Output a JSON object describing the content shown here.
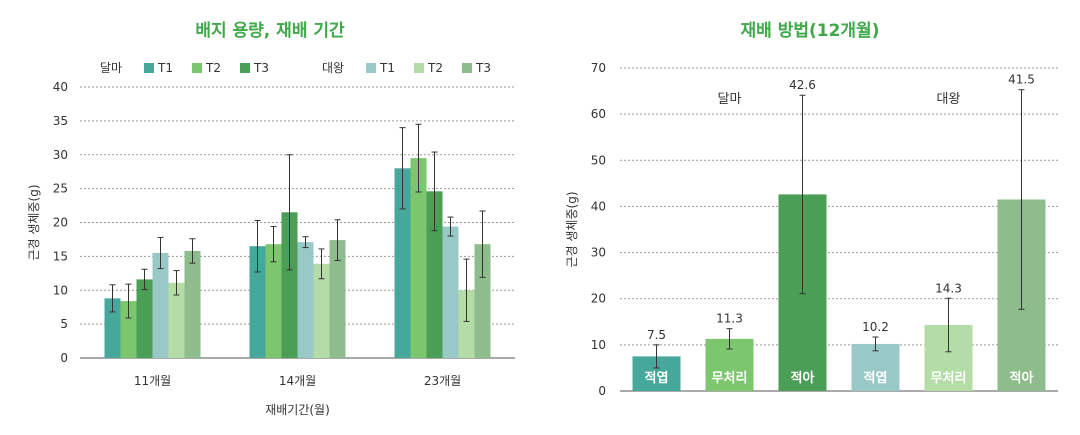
{
  "chart_data": [
    {
      "type": "bar",
      "title": "배지 용량, 재배 기간",
      "xlabel": "재배기간(월)",
      "ylabel": "근경 생체중(g)",
      "ylim": [
        0,
        40
      ],
      "yticks": [
        0,
        5,
        10,
        15,
        20,
        25,
        30,
        35,
        40
      ],
      "grid": true,
      "legend_groups": [
        "달마",
        "대왕"
      ],
      "categories": [
        "11개월",
        "14개월",
        "23개월"
      ],
      "series": [
        {
          "name": "T1",
          "group": "달마",
          "color": "#46a89a",
          "values": [
            8.8,
            16.5,
            28.0
          ],
          "err": [
            2.0,
            3.8,
            6.0
          ]
        },
        {
          "name": "T2",
          "group": "달마",
          "color": "#7cc66e",
          "values": [
            8.4,
            16.8,
            29.5
          ],
          "err": [
            2.5,
            2.6,
            5.0
          ]
        },
        {
          "name": "T3",
          "group": "달마",
          "color": "#4a9e55",
          "values": [
            11.6,
            21.5,
            24.6
          ],
          "err": [
            1.5,
            8.5,
            5.8
          ]
        },
        {
          "name": "T1",
          "group": "대왕",
          "color": "#99c9c6",
          "values": [
            15.5,
            17.1,
            19.4
          ],
          "err": [
            2.3,
            0.8,
            1.4
          ]
        },
        {
          "name": "T2",
          "group": "대왕",
          "color": "#b4dca6",
          "values": [
            11.1,
            13.9,
            10.0
          ],
          "err": [
            1.8,
            2.2,
            4.6
          ]
        },
        {
          "name": "T3",
          "group": "대왕",
          "color": "#8ebc8c",
          "values": [
            15.8,
            17.4,
            16.8
          ],
          "err": [
            1.8,
            3.0,
            4.9
          ]
        }
      ]
    },
    {
      "type": "bar",
      "title": "재배 방법(12개월)",
      "ylabel": "근경 생체중(g)",
      "ylim": [
        0,
        70
      ],
      "yticks": [
        0,
        10,
        20,
        30,
        40,
        50,
        60,
        70
      ],
      "grid": true,
      "annotations": [
        "달마",
        "대왕"
      ],
      "bars": [
        {
          "label": "적엽",
          "group": "달마",
          "value": 7.5,
          "value_label": "7.5",
          "err": 2.5,
          "color": "#46a89a"
        },
        {
          "label": "무처리",
          "group": "달마",
          "value": 11.3,
          "value_label": "11.3",
          "err": 2.2,
          "color": "#7cc66e"
        },
        {
          "label": "적아",
          "group": "달마",
          "value": 42.6,
          "value_label": "42.6",
          "err": 21.5,
          "color": "#4a9e55"
        },
        {
          "label": "적엽",
          "group": "대왕",
          "value": 10.2,
          "value_label": "10.2",
          "err": 1.5,
          "color": "#99c9c6"
        },
        {
          "label": "무처리",
          "group": "대왕",
          "value": 14.3,
          "value_label": "14.3",
          "err": 5.8,
          "color": "#b4dca6"
        },
        {
          "label": "적아",
          "group": "대왕",
          "value": 41.5,
          "value_label": "41.5",
          "err": 23.8,
          "color": "#8ebc8c"
        }
      ]
    }
  ]
}
